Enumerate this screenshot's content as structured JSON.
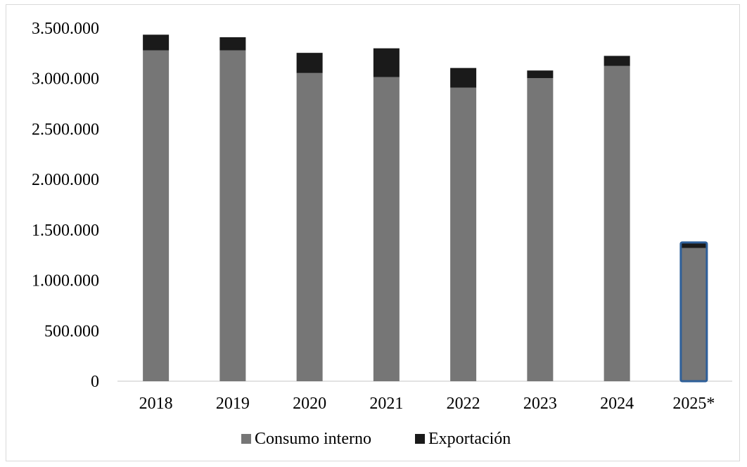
{
  "chart_data": {
    "type": "bar",
    "stacked": true,
    "title": "",
    "xlabel": "",
    "ylabel": "",
    "categories": [
      "2018",
      "2019",
      "2020",
      "2021",
      "2022",
      "2023",
      "2024",
      "2025*"
    ],
    "series": [
      {
        "name": "Consumo interno",
        "color": "#767676",
        "values": [
          3280000,
          3280000,
          3055000,
          3015000,
          2910000,
          3005000,
          3125000,
          1320000
        ]
      },
      {
        "name": "Exportación",
        "color": "#1a1a1a",
        "values": [
          155000,
          130000,
          200000,
          285000,
          195000,
          75000,
          100000,
          55000
        ]
      }
    ],
    "ylim": [
      0,
      3500000
    ],
    "yticks": [
      0,
      500000,
      1000000,
      1500000,
      2000000,
      2500000,
      3000000,
      3500000
    ],
    "ytick_labels": [
      "0",
      "500.000",
      "1.000.000",
      "1.500.000",
      "2.000.000",
      "2.500.000",
      "3.000.000",
      "3.500.000"
    ],
    "grid": false,
    "legend_position": "bottom",
    "highlighted_category": "2025*",
    "highlight_color": "#2e5f99"
  }
}
